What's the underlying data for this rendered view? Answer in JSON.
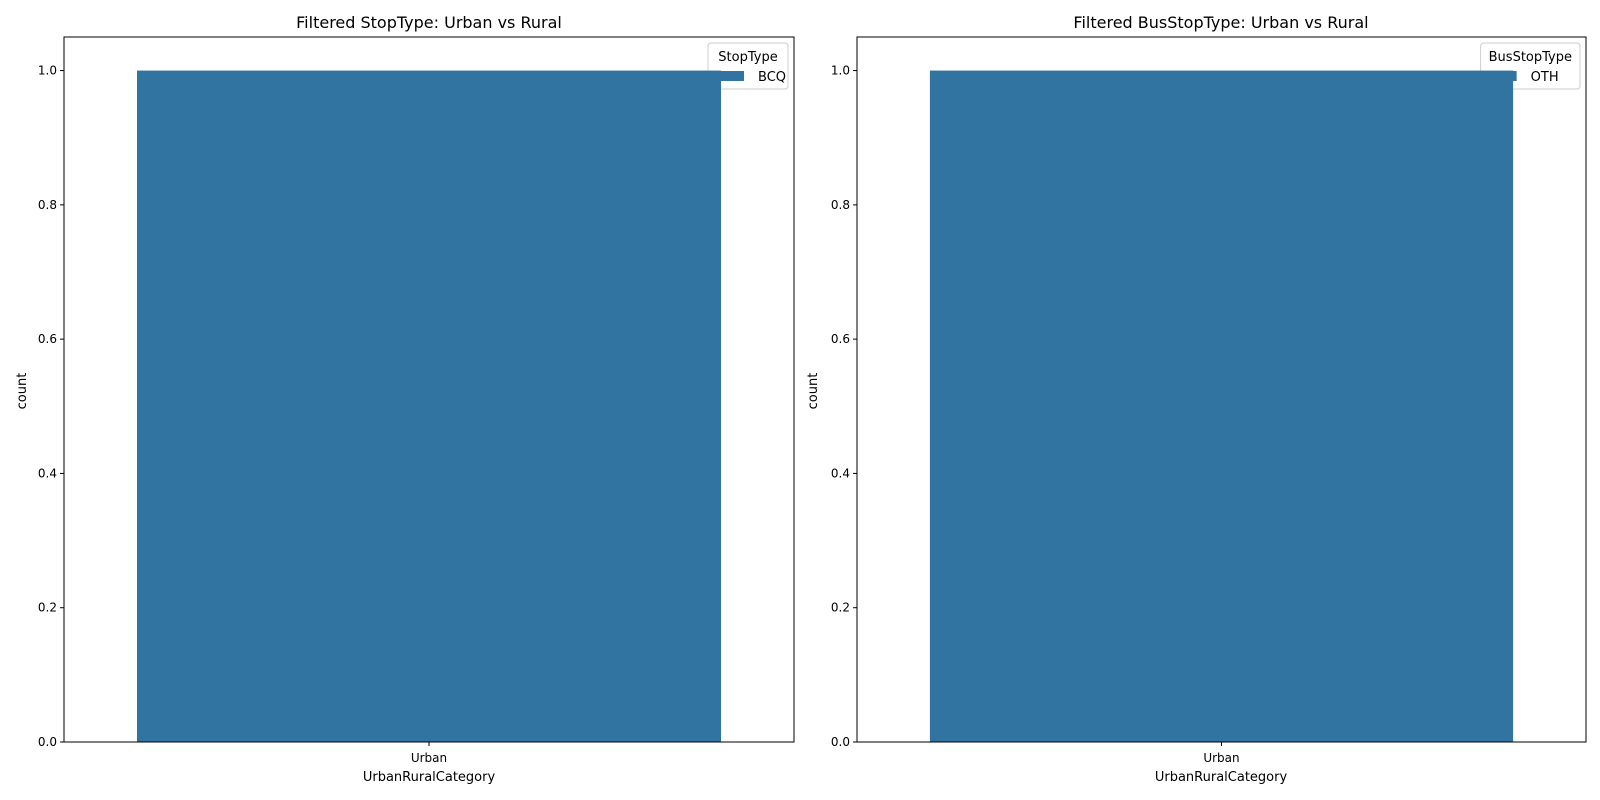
{
  "chart_data": [
    {
      "type": "bar",
      "title": "Filtered StopType: Urban vs Rural",
      "xlabel": "UrbanRuralCategory",
      "ylabel": "count",
      "categories": [
        "Urban"
      ],
      "series": [
        {
          "name": "BCQ",
          "values": [
            1
          ],
          "color": "#3274a1"
        }
      ],
      "ylim": [
        0,
        1.05
      ],
      "yticks": [
        0.0,
        0.2,
        0.4,
        0.6,
        0.8,
        1.0
      ],
      "ytick_labels": [
        "0.0",
        "0.2",
        "0.4",
        "0.6",
        "0.8",
        "1.0"
      ],
      "grid": false,
      "legend": {
        "title": "StopType",
        "placement": "top-right"
      }
    },
    {
      "type": "bar",
      "title": "Filtered BusStopType: Urban vs Rural",
      "xlabel": "UrbanRuralCategory",
      "ylabel": "count",
      "categories": [
        "Urban"
      ],
      "series": [
        {
          "name": "OTH",
          "values": [
            1
          ],
          "color": "#3274a1"
        }
      ],
      "ylim": [
        0,
        1.05
      ],
      "yticks": [
        0.0,
        0.2,
        0.4,
        0.6,
        0.8,
        1.0
      ],
      "ytick_labels": [
        "0.0",
        "0.2",
        "0.4",
        "0.6",
        "0.8",
        "1.0"
      ],
      "grid": false,
      "legend": {
        "title": "BusStopType",
        "placement": "top-right"
      }
    }
  ]
}
